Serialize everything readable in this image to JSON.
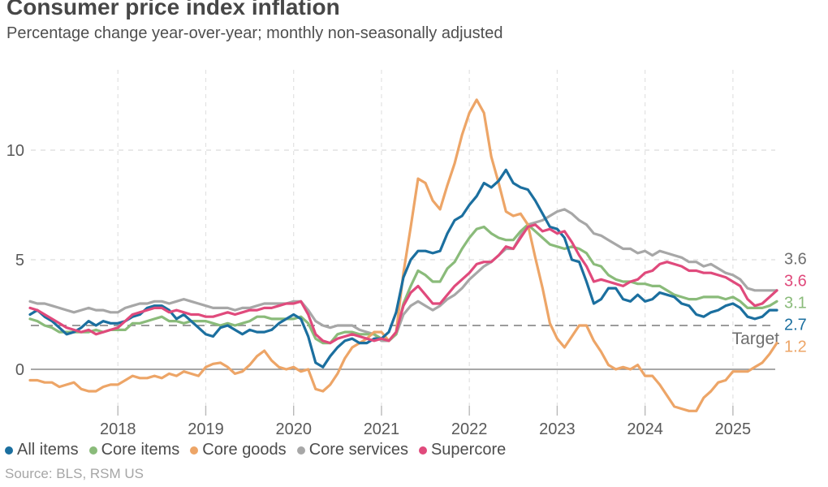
{
  "chart_data": {
    "type": "line",
    "title": "Consumer price index inflation",
    "subtitle": "Percentage change year-over-year; monthly non-seasonally adjusted",
    "source": "Source: BLS, RSM US",
    "x_unit": "month",
    "x_start": {
      "year": 2017,
      "month": 1
    },
    "x_end": {
      "year": 2025,
      "month": 7
    },
    "x_tick_years": [
      2018,
      2019,
      2020,
      2021,
      2022,
      2023,
      2024,
      2025
    ],
    "y_ticks": [
      0,
      5,
      10
    ],
    "ylim": [
      -2.2,
      13.5
    ],
    "grid": {
      "horizontal": "dashed at 5 and 10, solid zero line",
      "vertical": "dashed at each year"
    },
    "target_line": {
      "label": "Target",
      "value": 2,
      "style": "dashed"
    },
    "legend_position": "bottom",
    "series": [
      {
        "name": "All items",
        "color": "#1b6f9f",
        "label_color": "#1b6f9f",
        "end_label": "2.7",
        "values": [
          2.5,
          2.7,
          2.4,
          2.2,
          1.9,
          1.6,
          1.7,
          1.9,
          2.2,
          2.0,
          2.2,
          2.1,
          2.1,
          2.2,
          2.4,
          2.5,
          2.8,
          2.9,
          2.9,
          2.7,
          2.3,
          2.5,
          2.2,
          1.9,
          1.6,
          1.5,
          1.9,
          2.0,
          1.8,
          1.6,
          1.8,
          1.7,
          1.7,
          1.8,
          2.1,
          2.3,
          2.5,
          2.3,
          1.5,
          0.3,
          0.1,
          0.6,
          1.0,
          1.3,
          1.4,
          1.2,
          1.2,
          1.4,
          1.4,
          1.7,
          2.6,
          4.2,
          5.0,
          5.4,
          5.4,
          5.3,
          5.4,
          6.2,
          6.8,
          7.0,
          7.5,
          7.9,
          8.5,
          8.3,
          8.6,
          9.1,
          8.5,
          8.3,
          8.2,
          7.7,
          7.1,
          6.5,
          6.4,
          6.0,
          5.0,
          4.9,
          4.0,
          3.0,
          3.2,
          3.7,
          3.7,
          3.2,
          3.1,
          3.4,
          3.1,
          3.2,
          3.5,
          3.4,
          3.3,
          3.0,
          2.9,
          2.5,
          2.4,
          2.6,
          2.7,
          2.9,
          3.0,
          2.8,
          2.4,
          2.3,
          2.4,
          2.7,
          2.7
        ]
      },
      {
        "name": "Core items",
        "color": "#8aبc",
        "label_color": "#8abb7a",
        "end_label": "3.1",
        "values": [
          2.3,
          2.2,
          2.0,
          1.9,
          1.7,
          1.7,
          1.7,
          1.7,
          1.7,
          1.8,
          1.7,
          1.8,
          1.8,
          1.8,
          2.1,
          2.1,
          2.2,
          2.3,
          2.4,
          2.2,
          2.2,
          2.1,
          2.2,
          2.2,
          2.2,
          2.1,
          2.0,
          2.1,
          2.0,
          2.1,
          2.2,
          2.4,
          2.4,
          2.3,
          2.3,
          2.3,
          2.3,
          2.4,
          2.1,
          1.4,
          1.2,
          1.2,
          1.6,
          1.7,
          1.7,
          1.6,
          1.6,
          1.6,
          1.4,
          1.3,
          1.6,
          3.0,
          3.8,
          4.5,
          4.3,
          4.0,
          4.0,
          4.6,
          4.9,
          5.5,
          6.0,
          6.4,
          6.5,
          6.2,
          6.0,
          5.9,
          5.9,
          6.3,
          6.6,
          6.3,
          6.0,
          5.7,
          5.6,
          5.5,
          5.6,
          5.5,
          5.3,
          4.8,
          4.7,
          4.3,
          4.1,
          4.0,
          4.0,
          3.9,
          3.9,
          3.8,
          3.8,
          3.6,
          3.4,
          3.3,
          3.2,
          3.2,
          3.3,
          3.3,
          3.3,
          3.2,
          3.3,
          3.1,
          2.8,
          2.8,
          2.8,
          2.9,
          3.1
        ]
      },
      {
        "name": "Core goods",
        "color": "#eda567",
        "label_color": "#eda567",
        "end_label": "1.2",
        "values": [
          -0.5,
          -0.5,
          -0.6,
          -0.6,
          -0.8,
          -0.7,
          -0.6,
          -0.9,
          -1.0,
          -1.0,
          -0.8,
          -0.7,
          -0.7,
          -0.5,
          -0.3,
          -0.4,
          -0.4,
          -0.3,
          -0.4,
          -0.2,
          -0.3,
          -0.1,
          -0.2,
          -0.3,
          0.1,
          0.25,
          0.3,
          0.1,
          -0.2,
          -0.1,
          0.2,
          0.6,
          0.85,
          0.4,
          0.1,
          0.0,
          0.1,
          -0.1,
          0.0,
          -0.9,
          -1.0,
          -0.7,
          -0.2,
          0.5,
          1.0,
          1.2,
          1.4,
          1.7,
          1.7,
          1.3,
          1.7,
          4.4,
          6.5,
          8.7,
          8.5,
          7.7,
          7.3,
          8.4,
          9.4,
          10.7,
          11.7,
          12.3,
          11.7,
          9.7,
          8.5,
          7.2,
          7.0,
          7.1,
          6.6,
          5.1,
          3.7,
          2.1,
          1.4,
          1.0,
          1.5,
          2.0,
          2.0,
          1.3,
          0.8,
          0.2,
          0.0,
          0.1,
          0.0,
          0.2,
          -0.3,
          -0.3,
          -0.7,
          -1.2,
          -1.7,
          -1.8,
          -1.9,
          -1.9,
          -1.3,
          -1.0,
          -0.6,
          -0.5,
          -0.1,
          -0.1,
          -0.1,
          0.1,
          0.3,
          0.7,
          1.2
        ]
      },
      {
        "name": "Core services",
        "color": "#a7a7a7",
        "label_color": "#6f6f6f",
        "end_label": "3.6",
        "values": [
          3.1,
          3.0,
          3.0,
          2.9,
          2.8,
          2.7,
          2.6,
          2.7,
          2.8,
          2.7,
          2.7,
          2.6,
          2.6,
          2.8,
          2.9,
          3.0,
          3.0,
          3.1,
          3.1,
          3.0,
          3.1,
          3.2,
          3.1,
          3.0,
          2.9,
          2.8,
          2.8,
          2.8,
          2.7,
          2.8,
          2.8,
          2.9,
          3.0,
          3.0,
          3.0,
          3.0,
          3.1,
          3.1,
          2.7,
          2.2,
          2.0,
          1.9,
          2.0,
          2.0,
          2.0,
          1.8,
          1.7,
          1.6,
          1.3,
          1.3,
          1.6,
          2.5,
          2.9,
          3.1,
          2.9,
          2.7,
          2.9,
          3.2,
          3.4,
          3.7,
          4.1,
          4.4,
          4.7,
          4.9,
          5.2,
          5.5,
          5.5,
          6.1,
          6.6,
          6.7,
          6.8,
          7.0,
          7.2,
          7.3,
          7.1,
          6.8,
          6.6,
          6.2,
          6.1,
          5.9,
          5.7,
          5.5,
          5.5,
          5.3,
          5.4,
          5.2,
          5.4,
          5.3,
          5.2,
          5.1,
          4.9,
          4.9,
          4.7,
          4.8,
          4.6,
          4.4,
          4.3,
          4.1,
          3.7,
          3.6,
          3.6,
          3.6,
          3.6
        ]
      },
      {
        "name": "Supercore",
        "color": "#e04a7c",
        "label_color": "#e04a7c",
        "end_label": "3.6",
        "values": [
          2.8,
          2.7,
          2.5,
          2.3,
          2.1,
          1.9,
          1.8,
          1.7,
          1.8,
          1.6,
          1.7,
          1.8,
          1.9,
          2.2,
          2.5,
          2.6,
          2.7,
          2.8,
          2.8,
          2.6,
          2.7,
          2.6,
          2.5,
          2.5,
          2.4,
          2.4,
          2.5,
          2.6,
          2.5,
          2.6,
          2.7,
          2.7,
          2.8,
          2.8,
          2.9,
          3.0,
          3.0,
          3.1,
          2.5,
          1.6,
          1.3,
          1.2,
          1.4,
          1.5,
          1.6,
          1.5,
          1.4,
          1.3,
          1.4,
          1.3,
          1.7,
          2.9,
          3.5,
          3.8,
          3.4,
          3.0,
          3.0,
          3.4,
          3.8,
          4.1,
          4.4,
          4.8,
          4.9,
          4.9,
          5.2,
          5.6,
          5.5,
          6.0,
          6.5,
          6.6,
          6.3,
          6.4,
          6.2,
          6.3,
          5.8,
          5.2,
          4.7,
          4.0,
          4.1,
          4.0,
          3.9,
          3.8,
          4.0,
          4.1,
          4.4,
          4.5,
          4.8,
          4.9,
          4.8,
          4.7,
          4.5,
          4.5,
          4.4,
          4.4,
          4.3,
          4.2,
          4.0,
          3.8,
          3.2,
          2.9,
          3.0,
          3.3,
          3.6
        ]
      }
    ]
  }
}
